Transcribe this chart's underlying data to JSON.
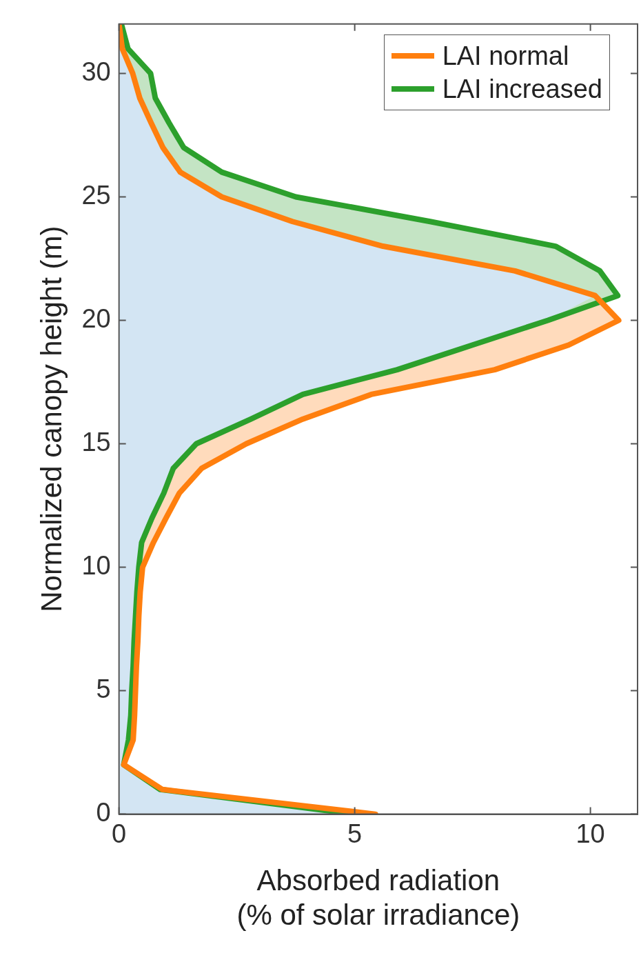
{
  "chart_data": {
    "type": "area",
    "xlabel": "Absorbed radiation\n(% of solar irradiance)",
    "ylabel": "Normalized canopy height (m)",
    "xlim": [
      0,
      11
    ],
    "xticks": [
      0,
      5,
      10
    ],
    "ylim": [
      0,
      32
    ],
    "yticks": [
      0,
      5,
      10,
      15,
      20,
      25,
      30
    ],
    "grid": false,
    "legend": "top right",
    "marker": "none",
    "line_style": "solid",
    "series": [
      {
        "name": "LAI normal",
        "color": "#ff7f0e",
        "x": [
          5.44,
          0.92,
          0.1,
          0.3,
          0.33,
          0.35,
          0.37,
          0.4,
          0.42,
          0.45,
          0.5,
          0.73,
          1.0,
          1.28,
          1.75,
          2.7,
          3.9,
          5.35,
          7.97,
          9.54,
          10.6,
          10.1,
          8.4,
          5.6,
          3.68,
          2.18,
          1.3,
          0.93,
          0.68,
          0.44,
          0.29,
          0.07,
          0
        ],
        "values": [
          0,
          1,
          2,
          3,
          4,
          5,
          6,
          7,
          8,
          9,
          10,
          11,
          12,
          13,
          14,
          15,
          16,
          17,
          18,
          19,
          20,
          21,
          22,
          23,
          24,
          25,
          26,
          27,
          28,
          29,
          30,
          31,
          32
        ]
      },
      {
        "type": "area",
        "color": "#d3e5f3",
        "x": [
          5.0,
          0.87,
          0.1,
          0.2,
          0.25,
          0.27,
          0.3,
          0.32,
          0.35,
          0.38,
          0.42,
          0.48,
          0.7,
          0.95,
          1.15,
          1.64,
          2.8,
          3.9,
          5.9,
          7.5,
          9.1,
          10.1,
          8.4,
          5.6,
          3.68,
          2.18,
          1.3,
          0.93,
          0.68,
          0.44,
          0.29,
          0.07,
          0
        ],
        "values": [
          0,
          1,
          2,
          3,
          4,
          5,
          6,
          7,
          8,
          9,
          10,
          11,
          12,
          13,
          14,
          15,
          16,
          17,
          18,
          19,
          20,
          21,
          22,
          23,
          24,
          25,
          26,
          27,
          28,
          29,
          30,
          31,
          32
        ]
      },
      {
        "name": "LAI increased",
        "color": "#2ca02c",
        "x": [
          5.0,
          0.87,
          0.1,
          0.2,
          0.25,
          0.27,
          0.3,
          0.32,
          0.35,
          0.38,
          0.42,
          0.48,
          0.7,
          0.95,
          1.15,
          1.64,
          2.8,
          3.9,
          5.9,
          7.5,
          9.1,
          10.58,
          10.2,
          9.26,
          6.6,
          3.75,
          2.18,
          1.37,
          1.06,
          0.77,
          0.67,
          0.19,
          0.05
        ],
        "values": [
          0,
          1,
          2,
          3,
          4,
          5,
          6,
          7,
          8,
          9,
          10,
          11,
          12,
          13,
          14,
          15,
          16,
          17,
          18,
          19,
          20,
          21,
          22,
          23,
          24,
          25,
          26,
          27,
          28,
          29,
          30,
          31,
          32
        ]
      }
    ]
  }
}
